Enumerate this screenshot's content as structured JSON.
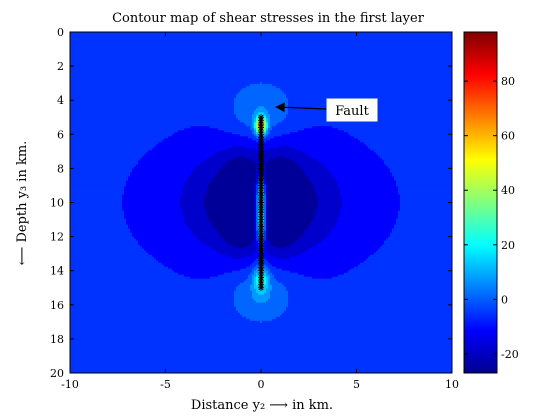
{
  "chart_data": {
    "type": "heatmap",
    "title": "Contour map of shear stresses in the first layer",
    "xlabel": "Distance y₂ ⟶ in km.",
    "ylabel": "⟵ Depth y₃ in km.",
    "xlim": [
      -10,
      10
    ],
    "ylim": [
      0,
      20
    ],
    "y_reversed": true,
    "x_ticks": [
      "-10",
      "-5",
      "0",
      "5",
      "10"
    ],
    "y_ticks": [
      "0",
      "2",
      "4",
      "6",
      "8",
      "10",
      "12",
      "14",
      "16",
      "18",
      "20"
    ],
    "colorbar": {
      "colormap": "jet",
      "range": [
        -27,
        98
      ],
      "ticks": [
        "-20",
        "0",
        "20",
        "40",
        "60",
        "80"
      ]
    },
    "fault": {
      "x": 0,
      "y_top": 5,
      "y_bottom": 15
    },
    "annotation": {
      "text": "Fault",
      "arrow_to": [
        0.8,
        4.4
      ]
    },
    "grid": false
  }
}
